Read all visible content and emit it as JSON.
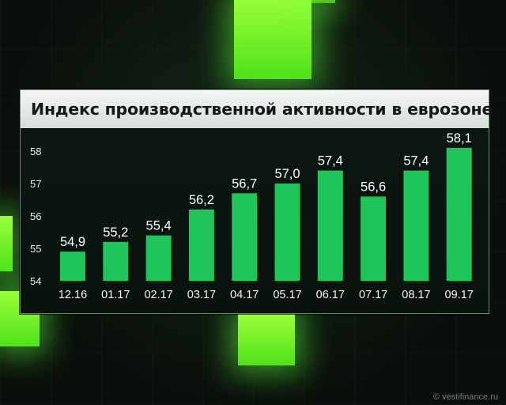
{
  "chart_data": {
    "type": "bar",
    "title": "Индекс производственной активности в еврозоне",
    "categories": [
      "12.16",
      "01.17",
      "02.17",
      "03.17",
      "04.17",
      "05.17",
      "06.17",
      "07.17",
      "08.17",
      "09.17"
    ],
    "values": [
      54.9,
      55.2,
      55.4,
      56.2,
      56.7,
      57.0,
      57.4,
      56.6,
      57.4,
      58.1
    ],
    "value_labels": [
      "54,9",
      "55,2",
      "55,4",
      "56,2",
      "56,7",
      "57,0",
      "57,4",
      "56,6",
      "57,4",
      "58,1"
    ],
    "y_ticks": [
      "54",
      "55",
      "56",
      "57",
      "58"
    ],
    "ylim": [
      54,
      58.4
    ],
    "grid": false,
    "legend": "none",
    "bar_color": "#1fc45a"
  },
  "watermark": "© vestifinance.ru",
  "colors": {
    "accent_green": "#5ff01f",
    "bar": "#1fc45a"
  }
}
